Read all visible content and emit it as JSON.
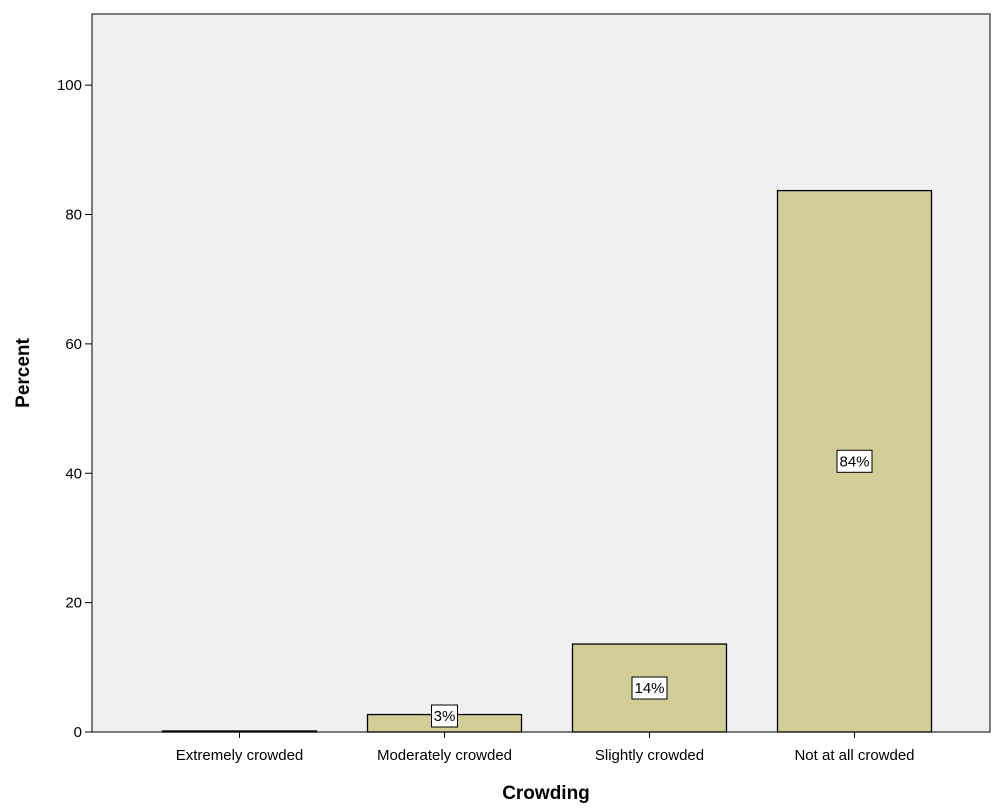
{
  "chart_data": {
    "type": "bar",
    "title": "",
    "xlabel": "Crowding",
    "ylabel": "Percent",
    "categories": [
      "Extremely crowded",
      "Moderately crowded",
      "Slightly crowded",
      "Not at all crowded"
    ],
    "values": [
      0,
      2.7,
      13.6,
      83.7
    ],
    "data_labels": [
      "",
      "3%",
      "14%",
      "84%"
    ],
    "ylim": [
      0,
      111
    ],
    "yticks": [
      0,
      20,
      40,
      60,
      80,
      100
    ],
    "ytick_labels": [
      "0",
      "20",
      "40",
      "60",
      "80",
      "100"
    ],
    "grid": false,
    "legend": "none",
    "colors": {
      "plot_background": "#f0f0f0",
      "bar_fill": "#d3ce97",
      "bar_stroke": "#000000",
      "label_box": "#ffffff"
    }
  }
}
